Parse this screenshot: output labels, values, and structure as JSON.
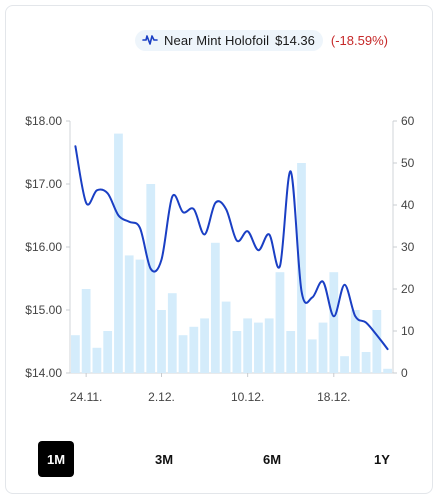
{
  "legend": {
    "series_name": "Near Mint Holofoil",
    "price": "$14.36",
    "change": "(-18.59%)",
    "icon": "line-chart-icon"
  },
  "ranges": [
    {
      "label": "1M",
      "active": true
    },
    {
      "label": "3M",
      "active": false
    },
    {
      "label": "6M",
      "active": false
    },
    {
      "label": "1Y",
      "active": false
    }
  ],
  "colors": {
    "line": "#1a3fc4",
    "bar": "#d4ecfb",
    "change_negative": "#c62828",
    "active_range_bg": "#000000"
  },
  "chart_data": {
    "type": "bar+line",
    "x_tick_labels": [
      "24.11.",
      "2.12.",
      "10.12.",
      "18.12."
    ],
    "y_left": {
      "min": 14.0,
      "max": 18.0,
      "ticks": [
        "$14.00",
        "$15.00",
        "$16.00",
        "$17.00",
        "$18.00"
      ]
    },
    "y_right": {
      "min": 0,
      "max": 60,
      "ticks": [
        "0",
        "10",
        "20",
        "30",
        "40",
        "50",
        "60"
      ]
    },
    "bar_values": [
      9,
      20,
      6,
      10,
      57,
      28,
      27,
      45,
      15,
      19,
      9,
      11,
      13,
      31,
      17,
      10,
      13,
      12,
      13,
      24,
      10,
      50,
      8,
      12,
      24,
      4,
      15,
      5,
      15,
      1
    ],
    "line_values": [
      17.6,
      16.7,
      16.9,
      16.85,
      16.5,
      16.4,
      16.3,
      15.65,
      15.8,
      16.8,
      16.55,
      16.6,
      16.2,
      16.7,
      16.6,
      16.1,
      16.25,
      15.95,
      16.2,
      15.7,
      17.2,
      15.3,
      15.2,
      15.45,
      14.9,
      15.4,
      14.9,
      14.8,
      14.6,
      14.38
    ]
  }
}
